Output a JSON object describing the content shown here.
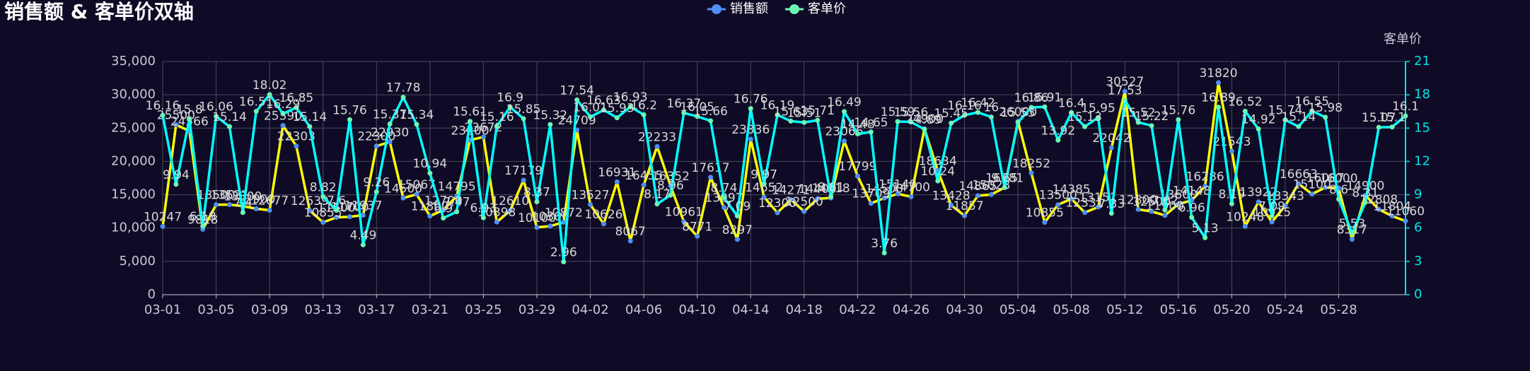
{
  "chart_data": {
    "type": "line",
    "title": "销售额 & 客单价双轴",
    "y2_name": "客单价",
    "categories": [
      "03-01",
      null,
      null,
      null,
      "03-05",
      null,
      null,
      null,
      "03-09",
      null,
      null,
      null,
      "03-13",
      null,
      null,
      null,
      "03-17",
      null,
      null,
      null,
      "03-21",
      null,
      null,
      null,
      "03-25",
      null,
      null,
      null,
      "03-29",
      null,
      null,
      null,
      "04-02",
      null,
      null,
      null,
      "04-06",
      null,
      null,
      null,
      "04-10",
      null,
      null,
      null,
      "04-14",
      null,
      null,
      null,
      "04-18",
      null,
      null,
      null,
      "04-22",
      null,
      null,
      null,
      "04-26",
      null,
      null,
      null,
      "04-30",
      null,
      null,
      null,
      "05-04",
      null,
      null,
      null,
      "05-08",
      null,
      null,
      null,
      "05-12",
      null,
      null,
      null,
      "05-16",
      null,
      null,
      null,
      "05-20",
      null,
      null,
      null,
      "05-24",
      null,
      null,
      null,
      "05-28",
      null,
      null,
      null,
      null,
      null
    ],
    "series": [
      {
        "name": "销售额",
        "color": "#4f8ff7",
        "line_color": "#ffff00",
        "values": [
          10247,
          25500,
          24566,
          9818,
          13500,
          13521,
          13300,
          12900,
          12677,
          25390,
          22303,
          12639,
          10855,
          11600,
          11700,
          11937,
          22300,
          22930,
          14500,
          15067,
          11800,
          12700,
          14795,
          23200,
          23672,
          10898,
          12610,
          17179,
          10100,
          10300,
          10872,
          24709,
          13527,
          10626,
          16931,
          8067,
          16455,
          22233,
          16352,
          10961,
          8771,
          17617,
          13097,
          8297,
          23336,
          14652,
          12300,
          14271,
          12500,
          14400,
          14518,
          23066,
          17799,
          13709,
          14500,
          15140,
          14700,
          24900,
          18634,
          13428,
          11857,
          14865,
          15028,
          16081,
          26000,
          18252,
          10855,
          13500,
          14385,
          12331,
          13151,
          22042,
          30527,
          12800,
          12500,
          11900,
          13600,
          14148,
          16286,
          31820,
          21543,
          10248,
          13922,
          10915,
          13343,
          16663,
          15100,
          16087,
          16000,
          8317,
          14900,
          12808,
          11804,
          11060
        ]
      },
      {
        "name": "客单价",
        "color": "#6ef5b5",
        "line_color": "#00ffff",
        "axis": "y2",
        "values": [
          16.16,
          9.94,
          15.8,
          6.18,
          16.06,
          15.14,
          7.4,
          16.51,
          18.02,
          16.29,
          16.85,
          15.14,
          8.82,
          7.6,
          15.76,
          4.49,
          9.26,
          15.37,
          17.78,
          15.34,
          10.94,
          6.9,
          7.47,
          15.61,
          6.93,
          15.16,
          16.9,
          15.85,
          8.37,
          15.32,
          2.96,
          17.54,
          16.01,
          16.63,
          15.93,
          16.93,
          16.2,
          8.17,
          8.96,
          16.37,
          16.05,
          15.66,
          8.74,
          7.09,
          16.76,
          9.97,
          16.19,
          15.63,
          15.51,
          15.71,
          8.81,
          16.49,
          14.48,
          14.65,
          3.76,
          15.59,
          15.56,
          14.89,
          10.24,
          15.45,
          16.16,
          16.42,
          16,
          9.65,
          15.53,
          16.86,
          16.91,
          13.92,
          16.4,
          15.13,
          15.95,
          7.33,
          17.53,
          15.52,
          15.22,
          7.62,
          15.76,
          6.96,
          5.13,
          16.89,
          8.19,
          16.52,
          14.92,
          7.09,
          15.74,
          15.14,
          16.55,
          15.98,
          8.6,
          5.53,
          8.31,
          15.07,
          15.1,
          16.1
        ]
      }
    ],
    "ylim": [
      0,
      35000
    ],
    "yticks": [
      0,
      {
        "value": 5000,
        "label": "5,000"
      },
      {
        "value": 10000,
        "label": "10,000"
      },
      {
        "value": 15000,
        "label": "15,000"
      },
      {
        "value": 20000,
        "label": "20,000"
      },
      {
        "value": 25000,
        "label": "25,000"
      },
      {
        "value": 30000,
        "label": "30,000"
      },
      {
        "value": 35000,
        "label": "35,000"
      }
    ],
    "y2lim": [
      0,
      21
    ],
    "y2ticks": [
      0,
      3,
      6,
      9,
      12,
      15,
      18,
      21
    ],
    "y2_color": "#00e5e5",
    "grid": true
  }
}
